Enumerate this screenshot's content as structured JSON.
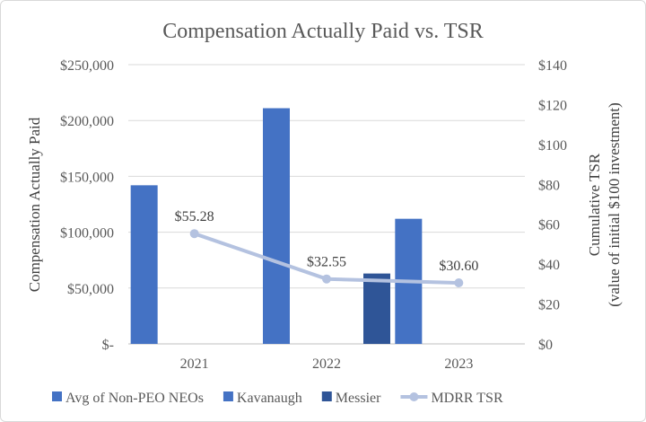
{
  "chart_data": {
    "type": "bar",
    "title": "Compensation Actually Paid vs. TSR",
    "categories": [
      "2021",
      "2022",
      "2023"
    ],
    "y_left": {
      "label": "Compensation Actually Paid",
      "range": [
        0,
        250000
      ],
      "ticks": [
        0,
        50000,
        100000,
        150000,
        200000,
        250000
      ],
      "tick_labels": [
        "$-",
        "$50,000",
        "$100,000",
        "$150,000",
        "$200,000",
        "$250,000"
      ]
    },
    "y_right": {
      "label_line1": "Cumulative TSR",
      "label_line2": "(value of initial $100 investment)",
      "range": [
        0,
        140
      ],
      "ticks": [
        0,
        20,
        40,
        60,
        80,
        100,
        120,
        140
      ],
      "tick_labels": [
        "$0",
        "$20",
        "$40",
        "$60",
        "$80",
        "$100",
        "$120",
        "$140"
      ]
    },
    "series": [
      {
        "name": "Avg of Non-PEO NEOs",
        "type": "bar",
        "axis": "left",
        "color": "#4472c4",
        "slot": 0,
        "values": [
          142000,
          211000,
          112000
        ]
      },
      {
        "name": "Kavanaugh",
        "type": "bar",
        "axis": "left",
        "color": "#4472c4",
        "slot": 1,
        "values": [
          null,
          null,
          null
        ]
      },
      {
        "name": "Messier",
        "type": "bar",
        "axis": "left",
        "color": "#2f5597",
        "slot": 2,
        "values": [
          null,
          63000,
          null
        ]
      },
      {
        "name": "MDRR TSR",
        "type": "line",
        "axis": "right",
        "color": "#b4c2e0",
        "values": [
          55.28,
          32.55,
          30.6
        ],
        "data_labels": [
          "$55.28",
          "$32.55",
          "$30.60"
        ]
      }
    ],
    "grid": true,
    "legend": "bottom"
  }
}
